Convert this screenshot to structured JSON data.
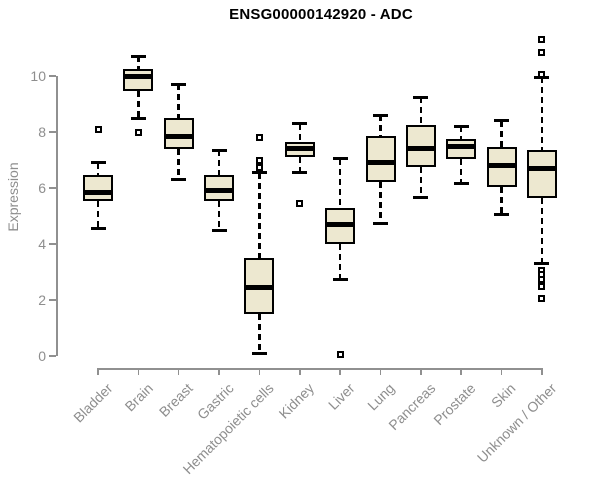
{
  "chart_data": {
    "type": "boxplot",
    "title": "ENSG00000142920 - ADC",
    "xlabel": "",
    "ylabel": "Expression",
    "ylim": [
      0,
      10
    ],
    "yticks": [
      0,
      2,
      4,
      6,
      8,
      10
    ],
    "grid": false,
    "legend": false,
    "categories": [
      "Bladder",
      "Brain",
      "Breast",
      "Gastric",
      "Hematopoietic cells",
      "Kidney",
      "Liver",
      "Lung",
      "Pancreas",
      "Prostate",
      "Skin",
      "Unknown / Other"
    ],
    "series": [
      {
        "category": "Bladder",
        "low": 4.55,
        "q1": 5.55,
        "median": 5.85,
        "q3": 6.45,
        "high": 6.9,
        "outliers": [
          8.1
        ]
      },
      {
        "category": "Brain",
        "low": 8.5,
        "q1": 9.45,
        "median": 10.0,
        "q3": 10.25,
        "high": 10.7,
        "outliers": [
          8.0
        ]
      },
      {
        "category": "Breast",
        "low": 6.3,
        "q1": 7.4,
        "median": 7.85,
        "q3": 8.5,
        "high": 9.7,
        "outliers": []
      },
      {
        "category": "Gastric",
        "low": 4.5,
        "q1": 5.55,
        "median": 5.9,
        "q3": 6.45,
        "high": 7.35,
        "outliers": []
      },
      {
        "category": "Hematopoietic cells",
        "low": 0.1,
        "q1": 1.5,
        "median": 2.45,
        "q3": 3.5,
        "high": 6.55,
        "outliers": [
          6.75,
          6.9,
          7.0,
          7.8
        ]
      },
      {
        "category": "Kidney",
        "low": 6.55,
        "q1": 7.1,
        "median": 7.4,
        "q3": 7.65,
        "high": 8.3,
        "outliers": [
          5.45
        ]
      },
      {
        "category": "Liver",
        "low": 2.75,
        "q1": 4.0,
        "median": 4.7,
        "q3": 5.3,
        "high": 7.05,
        "outliers": [
          0.05
        ]
      },
      {
        "category": "Lung",
        "low": 4.75,
        "q1": 6.2,
        "median": 6.9,
        "q3": 7.85,
        "high": 8.6,
        "outliers": []
      },
      {
        "category": "Pancreas",
        "low": 5.65,
        "q1": 6.75,
        "median": 7.4,
        "q3": 8.25,
        "high": 9.25,
        "outliers": []
      },
      {
        "category": "Prostate",
        "low": 6.15,
        "q1": 7.05,
        "median": 7.5,
        "q3": 7.75,
        "high": 8.2,
        "outliers": []
      },
      {
        "category": "Skin",
        "low": 5.05,
        "q1": 6.05,
        "median": 6.8,
        "q3": 7.45,
        "high": 8.4,
        "outliers": []
      },
      {
        "category": "Unknown / Other",
        "low": 3.3,
        "q1": 5.65,
        "median": 6.7,
        "q3": 7.35,
        "high": 9.95,
        "outliers": [
          11.3,
          10.85,
          10.05,
          3.05,
          2.9,
          2.75,
          2.5,
          2.05
        ]
      }
    ],
    "colors": {
      "box_fill": "#EDE8D0",
      "box_stroke": "#000000",
      "axis": "#909090",
      "tick_label": "#8e8e8e",
      "title": "#000000",
      "background": "#ffffff"
    }
  }
}
